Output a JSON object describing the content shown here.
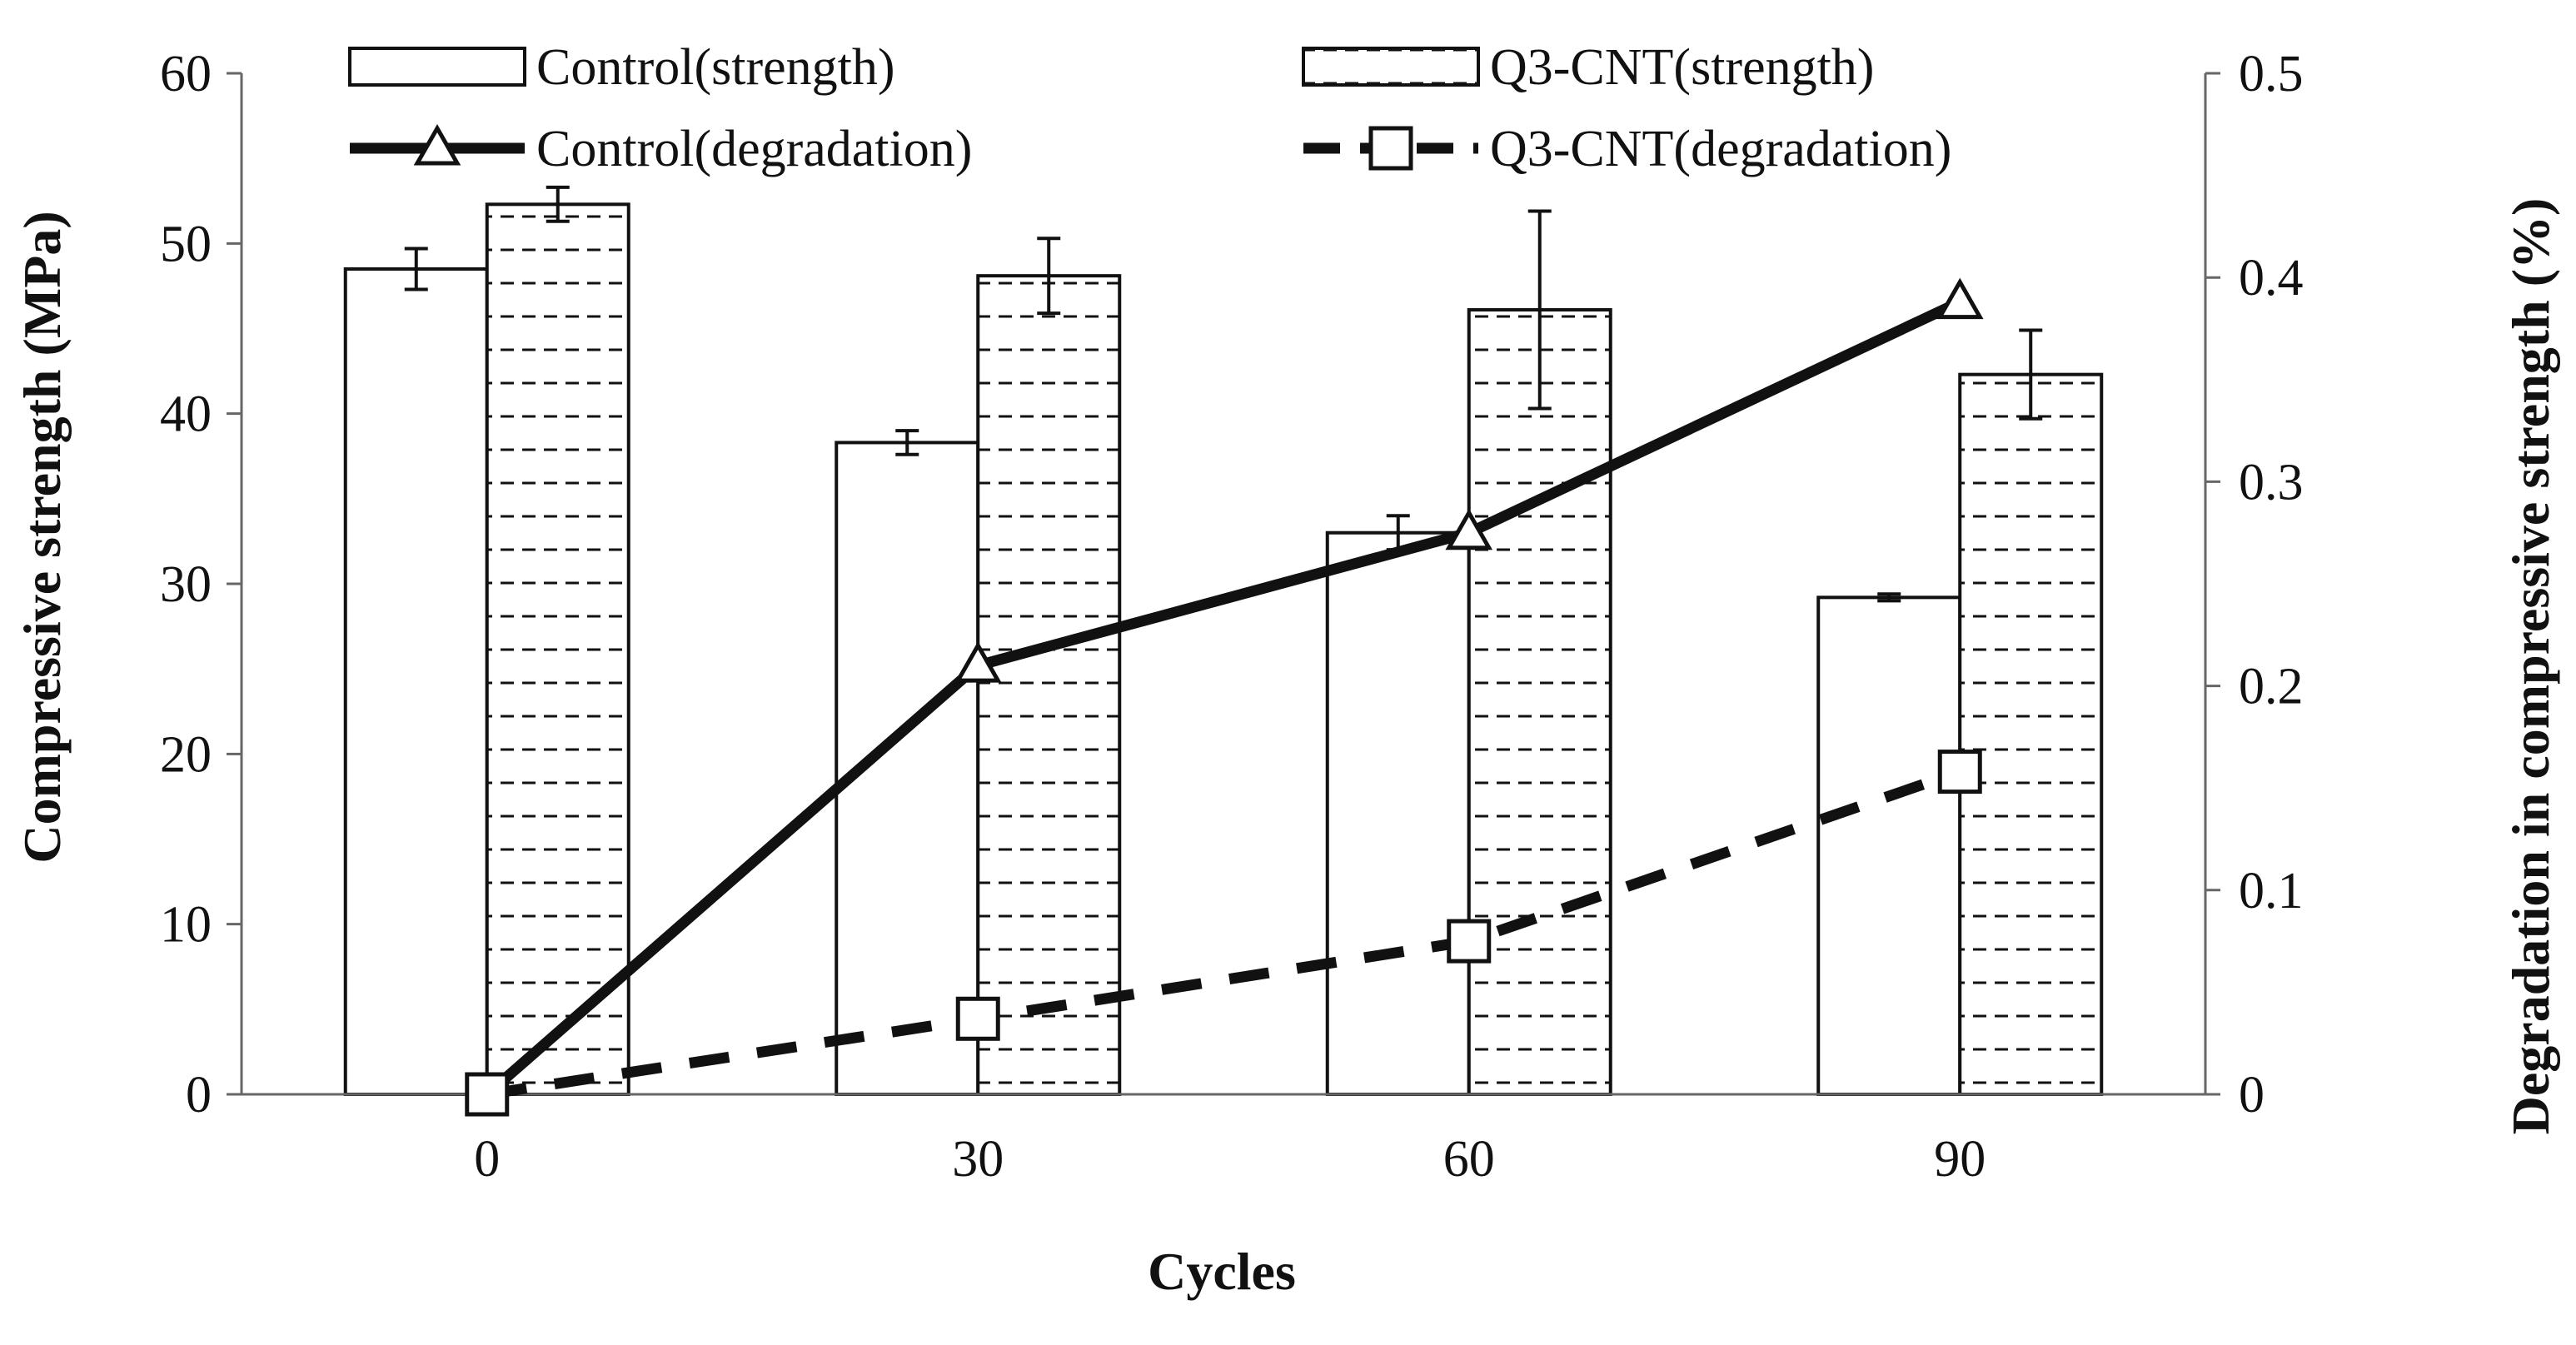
{
  "chart_data": {
    "type": "bar+line",
    "title": "",
    "xlabel": "Cycles",
    "ylabel_left": "Compressive strength (MPa)",
    "ylabel_right": "Degradation in compressive strength (%)",
    "categories": [
      "0",
      "30",
      "60",
      "90"
    ],
    "x": [
      0,
      30,
      60,
      90
    ],
    "ylim_left": [
      0,
      60
    ],
    "ylim_right": [
      0,
      0.5
    ],
    "yticks_left": [
      "0",
      "10",
      "20",
      "30",
      "40",
      "50",
      "60"
    ],
    "yticks_right": [
      "0",
      "0.1",
      "0.2",
      "0.3",
      "0.4",
      "0.5"
    ],
    "grid": false,
    "legend_position": "top",
    "bar_series": [
      {
        "name": "Control(strength)",
        "axis": "left",
        "pattern": "plain",
        "values": [
          48.5,
          38.3,
          33.0,
          29.2
        ],
        "errors": [
          1.2,
          0.7,
          1.0,
          0.2
        ]
      },
      {
        "name": "Q3-CNT(strength)",
        "axis": "left",
        "pattern": "dashed",
        "values": [
          52.3,
          48.1,
          46.1,
          42.3
        ],
        "errors": [
          1.0,
          2.2,
          5.8,
          2.6
        ]
      }
    ],
    "line_series": [
      {
        "name": "Control(degradation)",
        "axis": "right",
        "style": "solid",
        "marker": "triangle",
        "values": [
          0,
          0.21,
          0.275,
          0.388
        ]
      },
      {
        "name": "Q3-CNT(degradation)",
        "axis": "right",
        "style": "dashed",
        "marker": "square",
        "values": [
          0,
          0.037,
          0.075,
          0.158
        ]
      }
    ],
    "colors": {
      "ink": "#111111",
      "background": "#ffffff",
      "axis": "#666666"
    }
  }
}
